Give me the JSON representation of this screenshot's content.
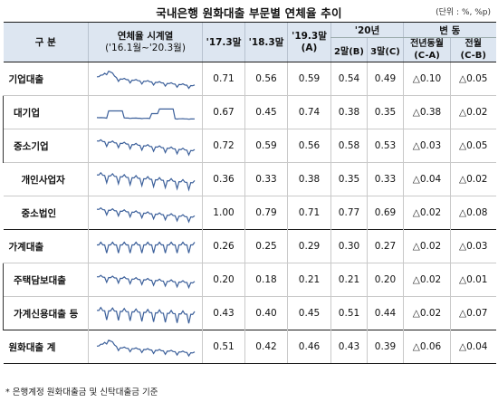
{
  "title": "국내은행 원화대출 부문별 연체율 추이",
  "unit": "(단위 : %, %p)",
  "header": {
    "category": "구 분",
    "series_label_1": "연체율 시계열",
    "series_label_2": "('16.1월~'20.3월)",
    "col_17": "'17.3말",
    "col_18": "'18.3말",
    "col_19_1": "'19.3말",
    "col_19_2": "(A)",
    "col_20": "'20년",
    "col_20_feb": "2말(B)",
    "col_20_mar": "3말(C)",
    "change": "변 동",
    "change_yoy_1": "전년동월",
    "change_yoy_2": "(C-A)",
    "change_mom_1": "전월",
    "change_mom_2": "(C-B)"
  },
  "rows": [
    {
      "label": "기업대출",
      "v17": "0.71",
      "v18": "0.56",
      "v19": "0.59",
      "feb": "0.54",
      "mar": "0.49",
      "yoy": "△0.10",
      "mom": "△0.05"
    },
    {
      "label": "대기업",
      "v17": "0.67",
      "v18": "0.45",
      "v19": "0.74",
      "feb": "0.38",
      "mar": "0.35",
      "yoy": "△0.38",
      "mom": "△0.02"
    },
    {
      "label": "중소기업",
      "v17": "0.72",
      "v18": "0.59",
      "v19": "0.56",
      "feb": "0.58",
      "mar": "0.53",
      "yoy": "△0.03",
      "mom": "△0.05"
    },
    {
      "label": "개인사업자",
      "v17": "0.36",
      "v18": "0.33",
      "v19": "0.38",
      "feb": "0.35",
      "mar": "0.33",
      "yoy": "△0.04",
      "mom": "△0.02"
    },
    {
      "label": "중소법인",
      "v17": "1.00",
      "v18": "0.79",
      "v19": "0.71",
      "feb": "0.77",
      "mar": "0.69",
      "yoy": "△0.02",
      "mom": "△0.08"
    },
    {
      "label": "가계대출",
      "v17": "0.26",
      "v18": "0.25",
      "v19": "0.29",
      "feb": "0.30",
      "mar": "0.27",
      "yoy": "△0.02",
      "mom": "△0.03"
    },
    {
      "label": "주택담보대출",
      "v17": "0.20",
      "v18": "0.18",
      "v19": "0.21",
      "feb": "0.21",
      "mar": "0.20",
      "yoy": "△0.02",
      "mom": "△0.01"
    },
    {
      "label": "가계신용대출 등",
      "v17": "0.43",
      "v18": "0.40",
      "v19": "0.45",
      "feb": "0.51",
      "mar": "0.44",
      "yoy": "△0.02",
      "mom": "△0.07"
    },
    {
      "label": "원화대출 계",
      "v17": "0.51",
      "v18": "0.42",
      "v19": "0.46",
      "feb": "0.43",
      "mar": "0.39",
      "yoy": "△0.06",
      "mom": "△0.04"
    }
  ],
  "sparklines": [
    {
      "start": 0.55,
      "end": 0.22,
      "amp": 0.09,
      "hump": 0.25,
      "spike": [],
      "color": "#3b5f9a"
    },
    {
      "start": 0.3,
      "end": 0.25,
      "amp": 0.01,
      "hump": 0.0,
      "spike": [
        [
          6,
          14,
          0.55
        ],
        [
          28,
          32,
          0.45
        ],
        [
          32,
          40,
          0.62
        ]
      ],
      "color": "#3b5f9a"
    },
    {
      "start": 0.65,
      "end": 0.28,
      "amp": 0.14,
      "hump": 0.0,
      "spike": [],
      "color": "#3b5f9a"
    },
    {
      "start": 0.62,
      "end": 0.32,
      "amp": 0.22,
      "hump": 0.0,
      "spike": [],
      "color": "#3b5f9a"
    },
    {
      "start": 0.6,
      "end": 0.3,
      "amp": 0.15,
      "hump": 0.0,
      "spike": [],
      "color": "#3b5f9a"
    },
    {
      "start": 0.5,
      "end": 0.5,
      "amp": 0.25,
      "hump": 0.0,
      "spike": [],
      "color": "#3b5f9a"
    },
    {
      "start": 0.58,
      "end": 0.35,
      "amp": 0.15,
      "hump": 0.0,
      "spike": [],
      "color": "#3b5f9a"
    },
    {
      "start": 0.55,
      "end": 0.4,
      "amp": 0.28,
      "hump": 0.0,
      "spike": [],
      "color": "#3b5f9a"
    },
    {
      "start": 0.5,
      "end": 0.25,
      "amp": 0.1,
      "hump": 0.25,
      "spike": [],
      "color": "#3b5f9a"
    }
  ],
  "note": "* 은행계정 원화대출금 및 신탁대출금 기준"
}
